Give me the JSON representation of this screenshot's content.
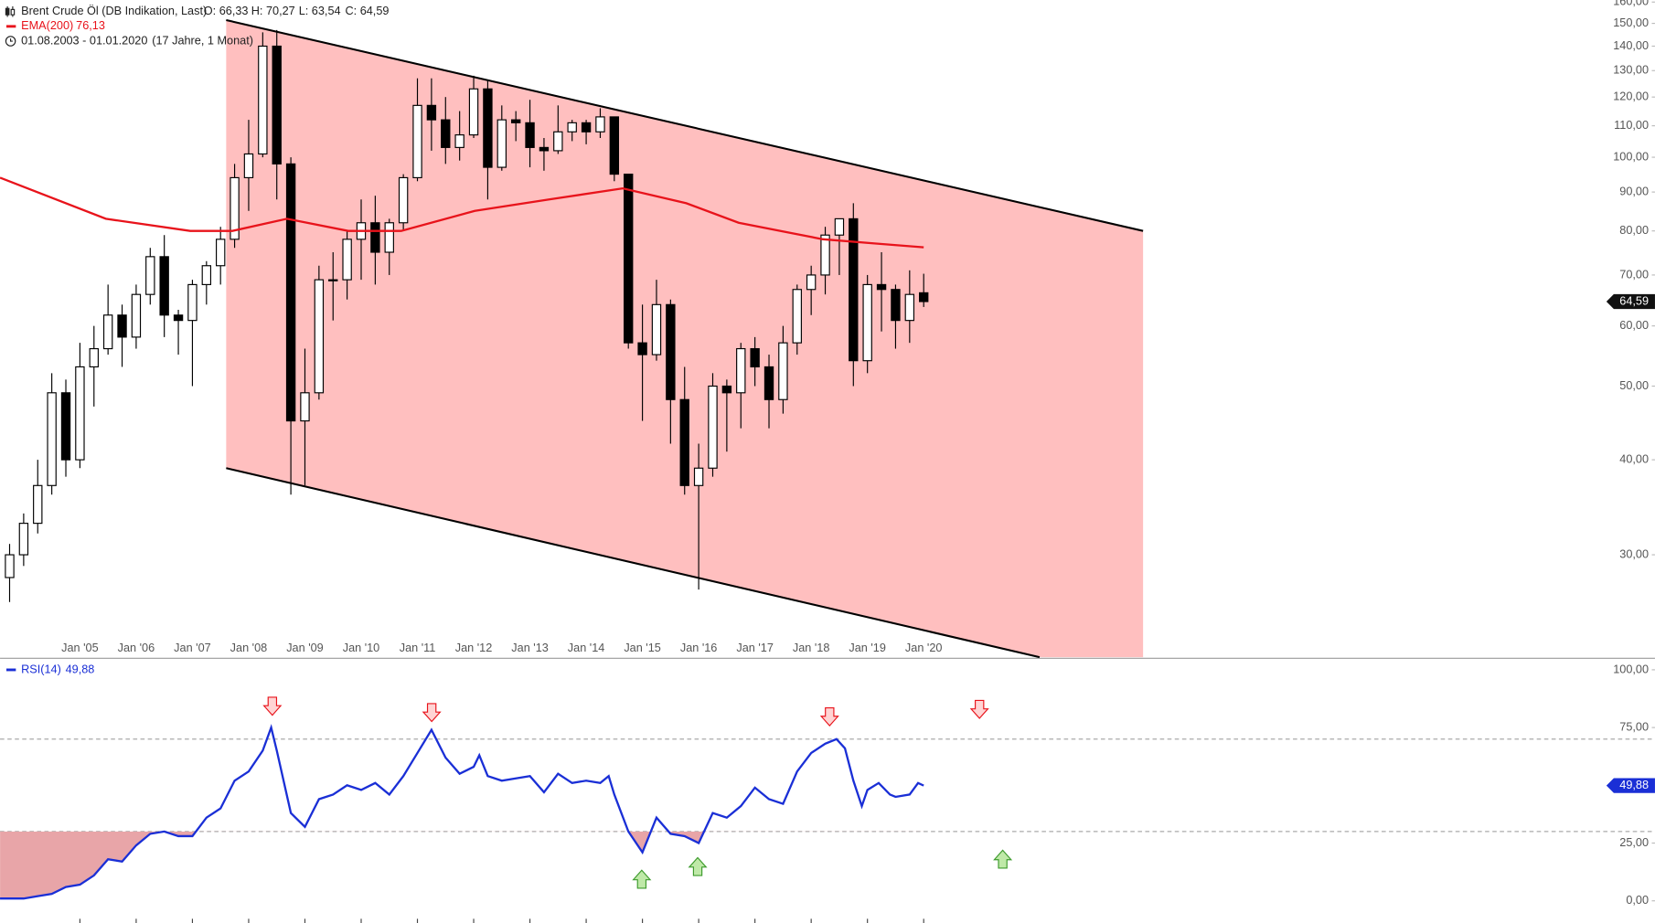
{
  "chart_data": [
    {
      "type": "candlestick",
      "title": "Brent Crude Öl (DB Indikation, Last)",
      "ohlc_labels": [
        "O: 66,33",
        "H: 70,27",
        "L: 63,54",
        "C: 64,59"
      ],
      "date_range": "01.08.2003 - 01.01.2020",
      "period": "(17 Jahre, 1 Monat)",
      "last_label": "64,59",
      "x": [
        2003.75,
        2004,
        2004.25,
        2004.5,
        2004.75,
        2005,
        2005.25,
        2005.5,
        2005.75,
        2006,
        2006.25,
        2006.5,
        2006.75,
        2007,
        2007.25,
        2007.5,
        2007.75,
        2008,
        2008.25,
        2008.5,
        2008.75,
        2009,
        2009.25,
        2009.5,
        2009.75,
        2010,
        2010.25,
        2010.5,
        2010.75,
        2011,
        2011.25,
        2011.5,
        2011.75,
        2012,
        2012.25,
        2012.5,
        2012.75,
        2013,
        2013.25,
        2013.5,
        2013.75,
        2014,
        2014.25,
        2014.5,
        2014.75,
        2015,
        2015.25,
        2015.5,
        2015.75,
        2016,
        2016.25,
        2016.5,
        2016.75,
        2017,
        2017.25,
        2017.5,
        2017.75,
        2018,
        2018.25,
        2018.5,
        2018.75,
        2019,
        2019.25,
        2019.5,
        2019.75,
        2020
      ],
      "open": [
        28,
        30,
        33,
        37,
        49,
        40,
        53,
        56,
        62,
        58,
        66,
        74,
        62,
        61,
        68,
        72,
        78,
        94,
        101,
        140,
        98,
        45,
        49,
        69,
        69,
        78,
        82,
        75,
        82,
        94,
        117,
        112,
        103,
        107,
        123,
        97,
        112,
        111,
        103,
        102,
        108,
        111,
        108,
        113,
        95,
        57,
        55,
        64,
        48,
        37,
        39,
        50,
        49,
        56,
        53,
        48,
        57,
        67,
        70,
        79,
        83,
        54,
        68,
        67,
        61,
        66.33
      ],
      "high": [
        31,
        34,
        40,
        52,
        51,
        57,
        60,
        68,
        64,
        68,
        76,
        79,
        63,
        69,
        73,
        81,
        98,
        112,
        146,
        147,
        100,
        56,
        72,
        75,
        80,
        88,
        89,
        83,
        95,
        127,
        127,
        120,
        115,
        128,
        126,
        117,
        115,
        119,
        106,
        117,
        112,
        112,
        116,
        113,
        95,
        64,
        69,
        65,
        53,
        42,
        52,
        51,
        57,
        58,
        55,
        60,
        68,
        72,
        81,
        83,
        87,
        70,
        75,
        68,
        71,
        70.27
      ],
      "low": [
        26,
        29,
        32,
        36,
        38,
        39,
        47,
        55,
        53,
        56,
        64,
        58,
        55,
        50,
        64,
        68,
        76,
        85,
        100,
        88,
        36,
        37,
        48,
        61,
        65,
        69,
        68,
        70,
        80,
        93,
        102,
        98,
        99,
        106,
        88,
        96,
        105,
        97,
        96,
        101,
        105,
        104,
        106,
        93,
        56,
        45,
        54,
        42,
        36,
        27,
        38,
        41,
        44,
        50,
        44,
        46,
        55,
        62,
        66,
        70,
        50,
        52,
        59,
        56,
        57,
        63.54
      ],
      "close": [
        30,
        33,
        37,
        49,
        40,
        53,
        56,
        62,
        58,
        66,
        74,
        62,
        61,
        68,
        72,
        78,
        94,
        101,
        140,
        98,
        45,
        49,
        69,
        69,
        78,
        82,
        75,
        82,
        94,
        117,
        112,
        103,
        107,
        123,
        97,
        112,
        111,
        103,
        102,
        108,
        111,
        108,
        113,
        95,
        57,
        55,
        64,
        48,
        37,
        39,
        50,
        49,
        56,
        53,
        48,
        57,
        67,
        70,
        79,
        83,
        54,
        68,
        67,
        61,
        66,
        64.59
      ],
      "up_color": "#ffffff",
      "down_color": "#000000",
      "ema": {
        "name": "EMA(200)",
        "value_label": "76,13",
        "color": "#e8131b",
        "x": [
          2003.58,
          2005.46,
          2006.96,
          2007.71,
          2008.68,
          2009.77,
          2010.71,
          2012.02,
          2013.34,
          2014.65,
          2015.78,
          2016.71,
          2018.21,
          2019.15,
          2020
        ],
        "values": [
          94,
          83,
          80,
          80,
          83,
          80,
          80,
          85,
          88,
          91,
          87,
          82,
          78,
          77,
          76.13
        ]
      },
      "channel": {
        "color": "#ffbfbf",
        "upper": [
          [
            2007.6,
            151.5
          ],
          [
            2023.9,
            80
          ]
        ],
        "lower": [
          [
            2007.6,
            39
          ],
          [
            2022.06,
            22
          ]
        ]
      },
      "log_scale": true,
      "xlim": [
        2003.58,
        2033.0
      ],
      "xticks": [
        {
          "value": 2005,
          "label": "Jan '05"
        },
        {
          "value": 2006,
          "label": "Jan '06"
        },
        {
          "value": 2007,
          "label": "Jan '07"
        },
        {
          "value": 2008,
          "label": "Jan '08"
        },
        {
          "value": 2009,
          "label": "Jan '09"
        },
        {
          "value": 2010,
          "label": "Jan '10"
        },
        {
          "value": 2011,
          "label": "Jan '11"
        },
        {
          "value": 2012,
          "label": "Jan '12"
        },
        {
          "value": 2013,
          "label": "Jan '13"
        },
        {
          "value": 2014,
          "label": "Jan '14"
        },
        {
          "value": 2015,
          "label": "Jan '15"
        },
        {
          "value": 2016,
          "label": "Jan '16"
        },
        {
          "value": 2017,
          "label": "Jan '17"
        },
        {
          "value": 2018,
          "label": "Jan '18"
        },
        {
          "value": 2019,
          "label": "Jan '19"
        },
        {
          "value": 2020,
          "label": "Jan '20"
        }
      ],
      "ylim": [
        22,
        161
      ],
      "yticks": [
        {
          "value": 30,
          "label": "30,00"
        },
        {
          "value": 40,
          "label": "40,00"
        },
        {
          "value": 50,
          "label": "50,00"
        },
        {
          "value": 60,
          "label": "60,00"
        },
        {
          "value": 70,
          "label": "70,00"
        },
        {
          "value": 80,
          "label": "80,00"
        },
        {
          "value": 90,
          "label": "90,00"
        },
        {
          "value": 100,
          "label": "100,00"
        },
        {
          "value": 110,
          "label": "110,00"
        },
        {
          "value": 120,
          "label": "120,00"
        },
        {
          "value": 130,
          "label": "130,00"
        },
        {
          "value": 140,
          "label": "140,00"
        },
        {
          "value": 150,
          "label": "150,00"
        },
        {
          "value": 160,
          "label": "160,00"
        }
      ]
    },
    {
      "type": "line",
      "name": "RSI(14)",
      "value_label": "49,88",
      "color": "#1a2fd6",
      "x": [
        2003.58,
        2003.75,
        2004,
        2004.25,
        2004.5,
        2004.75,
        2005,
        2005.25,
        2005.5,
        2005.75,
        2006,
        2006.25,
        2006.5,
        2006.75,
        2007,
        2007.25,
        2007.5,
        2007.75,
        2008,
        2008.25,
        2008.4,
        2008.5,
        2008.75,
        2009,
        2009.25,
        2009.5,
        2009.75,
        2010,
        2010.25,
        2010.5,
        2010.75,
        2011,
        2011.25,
        2011.5,
        2011.75,
        2012,
        2012.1,
        2012.25,
        2012.5,
        2012.75,
        2013,
        2013.25,
        2013.5,
        2013.75,
        2014,
        2014.25,
        2014.4,
        2014.5,
        2014.75,
        2015,
        2015.25,
        2015.5,
        2015.75,
        2016,
        2016.25,
        2016.5,
        2016.75,
        2017,
        2017.25,
        2017.5,
        2017.75,
        2018,
        2018.25,
        2018.45,
        2018.6,
        2018.75,
        2018.9,
        2019,
        2019.2,
        2019.4,
        2019.5,
        2019.75,
        2019.9,
        2020
      ],
      "values": [
        1,
        1,
        1,
        2,
        3,
        6,
        7,
        11,
        18,
        17,
        24,
        29,
        30,
        28,
        28,
        36,
        40,
        52,
        56,
        65,
        75,
        65,
        38,
        32,
        44,
        46,
        50,
        48,
        51,
        46,
        54,
        64,
        74,
        62,
        55,
        58,
        63,
        54,
        52,
        53,
        54,
        47,
        55,
        51,
        52,
        51,
        54,
        46,
        30,
        21,
        36,
        29,
        28,
        25,
        38,
        36,
        41,
        49,
        44,
        42,
        56,
        64,
        68,
        70,
        66,
        52,
        41,
        48,
        51,
        46,
        45,
        46,
        51,
        49.88
      ],
      "levels": [
        30,
        70
      ],
      "oversold_fill": "#e8a5a8",
      "ylim": [
        -9.6,
        105
      ],
      "yticks": [
        {
          "value": 0,
          "label": "0,00"
        },
        {
          "value": 25,
          "label": "25,00"
        },
        {
          "value": 75,
          "label": "75,00"
        },
        {
          "value": 100,
          "label": "100,00"
        }
      ]
    }
  ]
}
